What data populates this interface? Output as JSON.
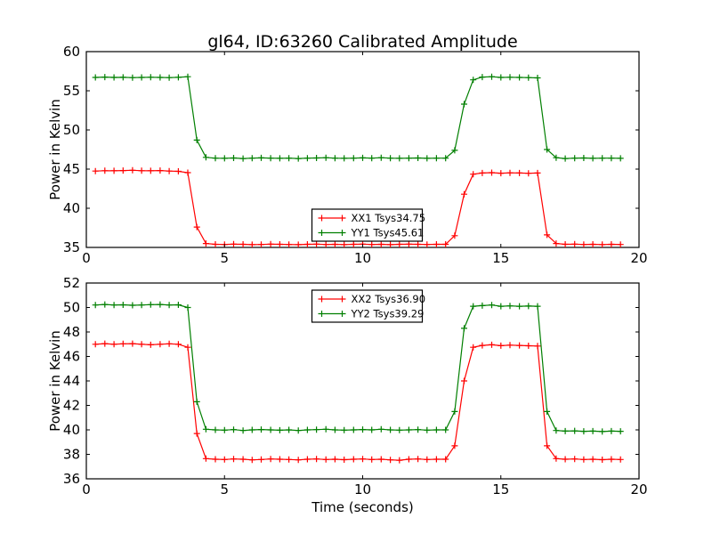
{
  "figure": {
    "title": "gl64, ID:63260 Calibrated Amplitude",
    "background": "#ffffff",
    "text_color": "#000000"
  },
  "chart_data": [
    {
      "type": "line",
      "ylabel": "Power in Kelvin",
      "xlabel": "",
      "xlim": [
        0,
        20
      ],
      "ylim": [
        35,
        60
      ],
      "xticks": [
        0,
        5,
        10,
        15,
        20
      ],
      "yticks": [
        35,
        40,
        45,
        50,
        55,
        60
      ],
      "grid": false,
      "legend_position": "lower center",
      "x": [
        0.33,
        0.67,
        1.0,
        1.33,
        1.67,
        2.0,
        2.33,
        2.67,
        3.0,
        3.33,
        3.67,
        4.0,
        4.33,
        4.67,
        5.0,
        5.33,
        5.67,
        6.0,
        6.33,
        6.67,
        7.0,
        7.33,
        7.67,
        8.0,
        8.33,
        8.67,
        9.0,
        9.33,
        9.67,
        10.0,
        10.33,
        10.67,
        11.0,
        11.33,
        11.67,
        12.0,
        12.33,
        12.67,
        13.0,
        13.33,
        13.67,
        14.0,
        14.33,
        14.67,
        15.0,
        15.33,
        15.67,
        16.0,
        16.33,
        16.67,
        17.0,
        17.33,
        17.67,
        18.0,
        18.33,
        18.67,
        19.0,
        19.33
      ],
      "series": [
        {
          "name": "XX1 Tsys34.75",
          "color": "#ff0000",
          "marker": "+",
          "values": [
            44.75,
            44.8,
            44.78,
            44.82,
            44.85,
            44.8,
            44.78,
            44.82,
            44.75,
            44.72,
            44.55,
            37.6,
            35.5,
            35.4,
            35.38,
            35.42,
            35.4,
            35.35,
            35.38,
            35.42,
            35.4,
            35.38,
            35.35,
            35.4,
            35.42,
            35.38,
            35.4,
            35.36,
            35.4,
            35.42,
            35.38,
            35.4,
            35.35,
            35.4,
            35.42,
            35.4,
            35.38,
            35.4,
            35.4,
            36.5,
            41.8,
            44.35,
            44.5,
            44.55,
            44.48,
            44.52,
            44.5,
            44.47,
            44.5,
            36.6,
            35.5,
            35.4,
            35.42,
            35.38,
            35.4,
            35.36,
            35.4,
            35.38
          ]
        },
        {
          "name": "YY1 Tsys45.61",
          "color": "#007f00",
          "marker": "+",
          "values": [
            56.7,
            56.75,
            56.7,
            56.72,
            56.68,
            56.7,
            56.73,
            56.7,
            56.68,
            56.72,
            56.8,
            48.7,
            46.5,
            46.4,
            46.38,
            46.42,
            46.35,
            46.4,
            46.43,
            46.4,
            46.37,
            46.4,
            46.35,
            46.4,
            46.42,
            46.45,
            46.4,
            46.38,
            46.4,
            46.43,
            46.4,
            46.45,
            46.4,
            46.38,
            46.4,
            46.42,
            46.38,
            46.4,
            46.4,
            47.4,
            53.3,
            56.4,
            56.75,
            56.8,
            56.7,
            56.73,
            56.7,
            56.68,
            56.65,
            47.5,
            46.45,
            46.35,
            46.4,
            46.42,
            46.38,
            46.4,
            46.4,
            46.38
          ]
        }
      ]
    },
    {
      "type": "line",
      "ylabel": "Power in Kelvin",
      "xlabel": "Time (seconds)",
      "xlim": [
        0,
        20
      ],
      "ylim": [
        36,
        52
      ],
      "xticks": [
        0,
        5,
        10,
        15,
        20
      ],
      "yticks": [
        36,
        38,
        40,
        42,
        44,
        46,
        48,
        50,
        52
      ],
      "grid": false,
      "legend_position": "upper center",
      "x": [
        0.33,
        0.67,
        1.0,
        1.33,
        1.67,
        2.0,
        2.33,
        2.67,
        3.0,
        3.33,
        3.67,
        4.0,
        4.33,
        4.67,
        5.0,
        5.33,
        5.67,
        6.0,
        6.33,
        6.67,
        7.0,
        7.33,
        7.67,
        8.0,
        8.33,
        8.67,
        9.0,
        9.33,
        9.67,
        10.0,
        10.33,
        10.67,
        11.0,
        11.33,
        11.67,
        12.0,
        12.33,
        12.67,
        13.0,
        13.33,
        13.67,
        14.0,
        14.33,
        14.67,
        15.0,
        15.33,
        15.67,
        16.0,
        16.33,
        16.67,
        17.0,
        17.33,
        17.67,
        18.0,
        18.33,
        18.67,
        19.0,
        19.33
      ],
      "series": [
        {
          "name": "XX2 Tsys36.90",
          "color": "#ff0000",
          "marker": "+",
          "values": [
            47.0,
            47.05,
            47.0,
            47.03,
            47.05,
            47.0,
            46.95,
            47.0,
            47.03,
            47.0,
            46.75,
            39.7,
            37.65,
            37.6,
            37.58,
            37.62,
            37.6,
            37.55,
            37.58,
            37.62,
            37.6,
            37.58,
            37.55,
            37.6,
            37.62,
            37.58,
            37.6,
            37.56,
            37.6,
            37.62,
            37.58,
            37.6,
            37.55,
            37.52,
            37.6,
            37.62,
            37.58,
            37.6,
            37.6,
            38.7,
            44.0,
            46.75,
            46.9,
            46.95,
            46.88,
            46.92,
            46.9,
            46.87,
            46.85,
            38.7,
            37.65,
            37.6,
            37.62,
            37.58,
            37.6,
            37.56,
            37.6,
            37.58
          ]
        },
        {
          "name": "YY2 Tsys39.29",
          "color": "#007f00",
          "marker": "+",
          "values": [
            50.2,
            50.25,
            50.2,
            50.22,
            50.18,
            50.2,
            50.23,
            50.25,
            50.2,
            50.22,
            50.0,
            42.3,
            40.05,
            40.0,
            39.98,
            40.02,
            39.95,
            40.0,
            40.03,
            40.0,
            39.97,
            40.0,
            39.95,
            40.0,
            40.02,
            40.05,
            40.0,
            39.98,
            40.0,
            40.03,
            40.0,
            40.05,
            40.0,
            39.98,
            40.0,
            40.02,
            39.98,
            40.0,
            40.0,
            41.5,
            48.3,
            50.1,
            50.15,
            50.2,
            50.1,
            50.13,
            50.1,
            50.12,
            50.1,
            41.5,
            39.95,
            39.9,
            39.92,
            39.88,
            39.9,
            39.86,
            39.9,
            39.88
          ]
        }
      ]
    }
  ]
}
